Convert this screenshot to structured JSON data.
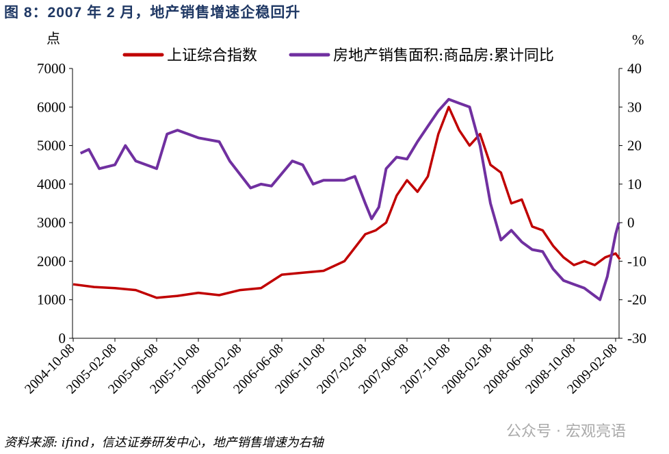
{
  "title": "图 8：2007 年 2 月，地产销售增速企稳回升",
  "source": "资料来源: ifind，信达证券研发中心，地产销售增速为右轴",
  "watermark": "公众号 · 宏观亮语",
  "chart_data": {
    "type": "line",
    "left_axis": {
      "unit": "点",
      "ylim": [
        0,
        7000
      ],
      "ticks": [
        0,
        1000,
        2000,
        3000,
        4000,
        5000,
        6000,
        7000
      ]
    },
    "right_axis": {
      "unit": "%",
      "ylim": [
        -30,
        40
      ],
      "ticks": [
        -30,
        -20,
        -10,
        0,
        10,
        20,
        30,
        40
      ]
    },
    "x_ticks": [
      "2004-10-08",
      "2005-02-08",
      "2005-06-08",
      "2005-10-08",
      "2006-02-08",
      "2006-06-08",
      "2006-10-08",
      "2007-02-08",
      "2007-06-08",
      "2007-10-08",
      "2008-02-08",
      "2008-06-08",
      "2008-10-08",
      "2009-02-08"
    ],
    "x_unit": "months since 2004-10",
    "legend_position": "top",
    "series": [
      {
        "name": "上证综合指数",
        "axis": "left",
        "color": "#c00000",
        "x": [
          0,
          2,
          4,
          6,
          8,
          10,
          12,
          14,
          16,
          18,
          20,
          22,
          24,
          26,
          28,
          29,
          30,
          31,
          32,
          33,
          34,
          35,
          36,
          37,
          38,
          39,
          40,
          41,
          42,
          43,
          44,
          45,
          46,
          47,
          48,
          49,
          50,
          51,
          52,
          52.4
        ],
        "y": [
          1400,
          1330,
          1300,
          1250,
          1050,
          1100,
          1180,
          1120,
          1250,
          1300,
          1650,
          1700,
          1750,
          2000,
          2700,
          2800,
          3000,
          3700,
          4100,
          3800,
          4200,
          5300,
          6000,
          5400,
          5000,
          5300,
          4500,
          4300,
          3500,
          3600,
          2900,
          2800,
          2400,
          2100,
          1900,
          2000,
          1900,
          2100,
          2200,
          2050
        ]
      },
      {
        "name": "房地产销售面积:商品房:累计同比",
        "axis": "right",
        "color": "#7030a0",
        "x": [
          0.7,
          1.5,
          2.5,
          4,
          5,
          6,
          8,
          9,
          10,
          12,
          14,
          15,
          17,
          18,
          19,
          21,
          22,
          23,
          24,
          26,
          27,
          28,
          28.6,
          29.3,
          30,
          31,
          32,
          33,
          34,
          35,
          36,
          37,
          38,
          39,
          40,
          41,
          42,
          43,
          44,
          45,
          46,
          47,
          48,
          49,
          50,
          50.5,
          51.2,
          52,
          52.3
        ],
        "y": [
          18,
          19,
          14,
          15,
          20,
          16,
          14,
          23,
          24,
          22,
          21,
          16,
          9,
          10,
          9.5,
          16,
          15,
          10,
          11,
          11,
          12,
          5,
          1,
          4,
          14,
          17,
          16.5,
          21,
          25,
          29,
          32,
          31,
          30,
          20,
          5,
          -4.5,
          -2,
          -5,
          -7,
          -7.5,
          -12,
          -15,
          -16,
          -17,
          -19,
          -20,
          -14,
          -3,
          0
        ]
      }
    ]
  }
}
